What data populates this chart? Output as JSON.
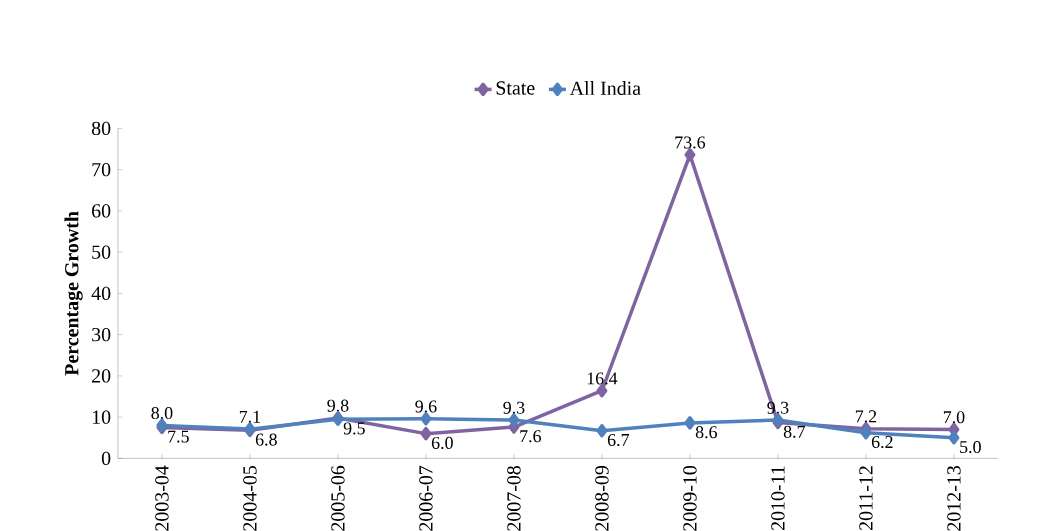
{
  "chart_data": {
    "type": "line",
    "ylabel": "Percentage Growth",
    "categories": [
      "2003-04",
      "2004-05",
      "2005-06",
      "2006-07",
      "2007-08",
      "2008-09",
      "2009-10",
      "2010-11",
      "2011-12",
      "2012-13"
    ],
    "series": [
      {
        "name": "State",
        "color": "#8064a2",
        "values": [
          7.5,
          6.8,
          9.8,
          6.0,
          7.6,
          16.4,
          73.6,
          8.7,
          7.2,
          7.0
        ],
        "value_labels": [
          "7.5",
          "6.8",
          "9.8",
          "6.0",
          "7.6",
          "16.4",
          "73.6",
          "8.7",
          "7.2",
          "7.0"
        ]
      },
      {
        "name": "All India",
        "color": "#4f81bd",
        "values": [
          8.0,
          7.1,
          9.5,
          9.6,
          9.3,
          6.7,
          8.6,
          9.3,
          6.2,
          5.0
        ],
        "value_labels": [
          "8.0",
          "7.1",
          "9.5",
          "9.6",
          "9.3",
          "6.7",
          "8.6",
          "9.3",
          "6.2",
          "5.0"
        ]
      }
    ],
    "ylim": [
      0,
      80
    ],
    "yticks": [
      0,
      10,
      20,
      30,
      40,
      50,
      60,
      70,
      80
    ],
    "grid": false,
    "legend": "top",
    "marker": "diamond",
    "line_style": "solid"
  }
}
